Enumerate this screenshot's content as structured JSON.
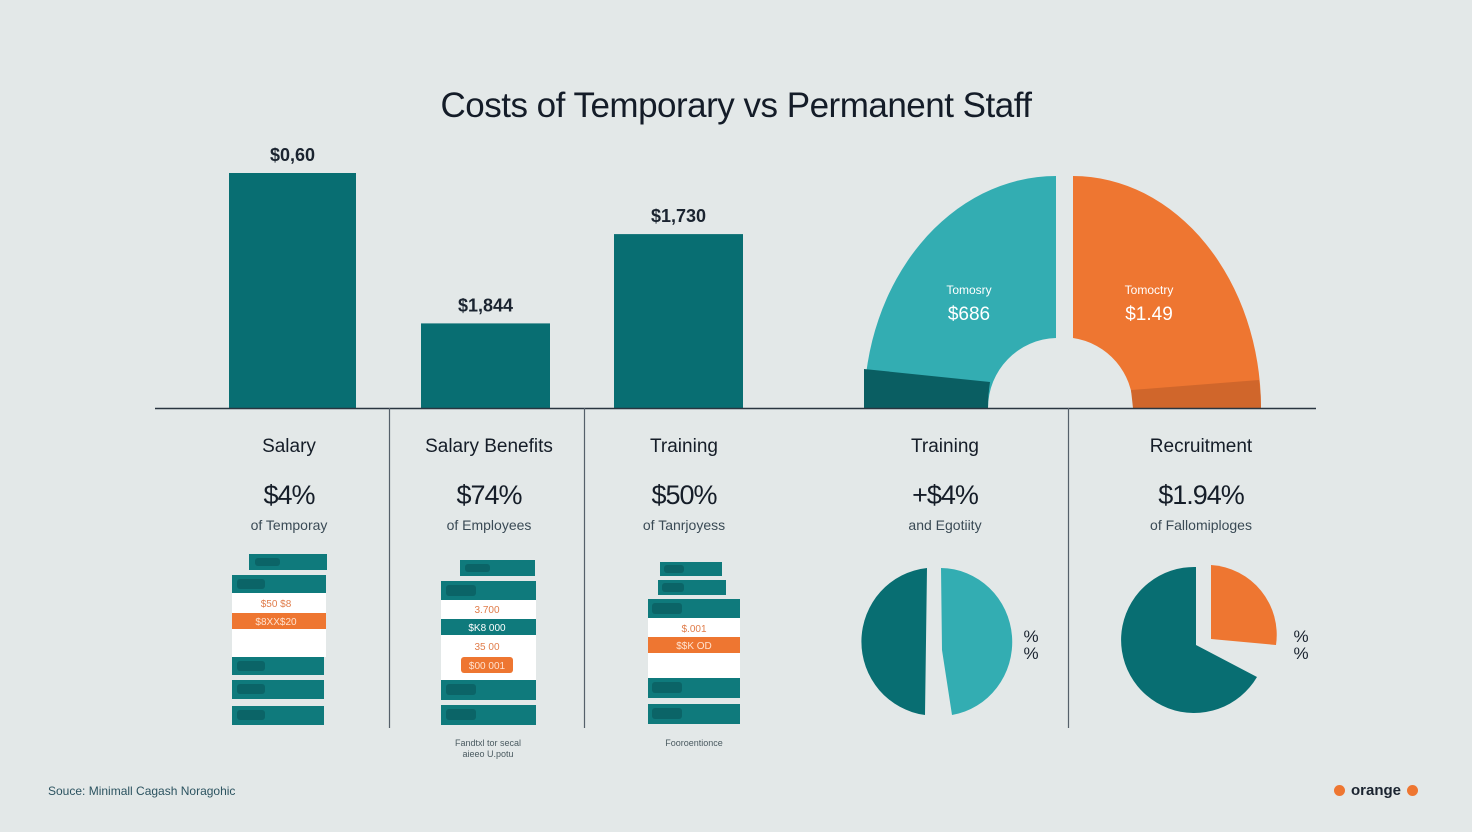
{
  "title": "Costs of Temporary vs Permanent Staff",
  "colors": {
    "teal_dark": "#086e72",
    "teal_light": "#33adb2",
    "orange": "#ee7631",
    "background": "#e3e8e8",
    "text": "#1b2430"
  },
  "chart_data": [
    {
      "type": "bar",
      "title": "Costs of Temporary vs Permanent Staff",
      "categories": [
        "Salary",
        "Salary Benefits",
        "Training"
      ],
      "value_labels": [
        "$0,60",
        "$1,844",
        "$1,730"
      ],
      "relative_heights": [
        1.0,
        0.36,
        0.74
      ],
      "xlabel": "",
      "ylabel": "",
      "grid": false
    },
    {
      "type": "pie",
      "style": "half-donut",
      "slices": [
        {
          "label": "Tomosry",
          "value_label": "$686",
          "share": 0.5,
          "color": "#33adb2"
        },
        {
          "label": "Tomoctry",
          "value_label": "$1.49",
          "share": 0.5,
          "color": "#ee7631"
        }
      ]
    },
    {
      "type": "pie",
      "title": "Training",
      "slices": [
        {
          "share": 0.5,
          "color": "#086e72"
        },
        {
          "share": 0.5,
          "color": "#33adb2"
        }
      ],
      "annotation": [
        "%",
        "%"
      ]
    },
    {
      "type": "pie",
      "title": "Recruitment",
      "slices": [
        {
          "share": 0.72,
          "color": "#086e72"
        },
        {
          "share": 0.25,
          "color": "#ee7631"
        }
      ],
      "annotation": [
        "%",
        "%"
      ]
    }
  ],
  "columns": [
    {
      "category": "Salary",
      "value": "$4%",
      "sub": "of Temporay"
    },
    {
      "category": "Salary Benefits",
      "value": "$74%",
      "sub": "of Employees"
    },
    {
      "category": "Training",
      "value": "$50%",
      "sub": "of Tanrjoyess"
    },
    {
      "category": "Training",
      "value": "+$4%",
      "sub": "and Egotiity"
    },
    {
      "category": "Recruitment",
      "value": "$1.94%",
      "sub": "of Fallomiploges"
    }
  ],
  "stacks": [
    {
      "lines": [
        "$50 $8",
        "$8XX$20"
      ]
    },
    {
      "lines": [
        "3.700",
        "$K8 000",
        "35 00",
        "$00 001"
      ]
    },
    {
      "lines": [
        "$.001",
        "$$K OD"
      ]
    }
  ],
  "footnotes": [
    "Fandtxl tor secal",
    "aieeo U.potu",
    "Fooroentionce"
  ],
  "pie_annotations": {
    "training": [
      "%",
      "%"
    ],
    "recruitment": [
      "%",
      "%"
    ]
  },
  "source": "Souce: Minimall Cagash Noragohic",
  "brand": "orange"
}
